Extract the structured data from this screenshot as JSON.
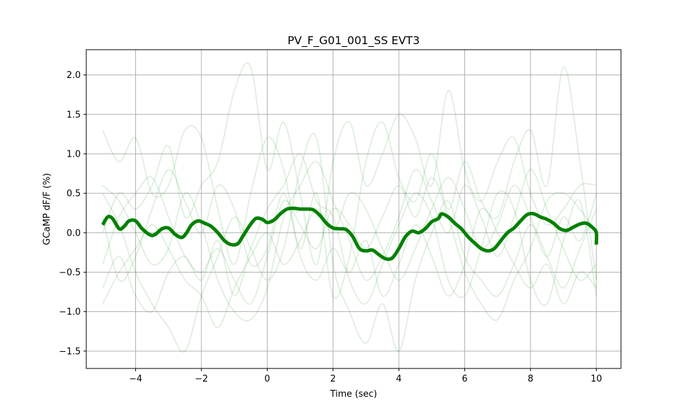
{
  "chart_data": {
    "type": "line",
    "title": "PV_F_G01_001_SS EVT3",
    "xlabel": "Time (sec)",
    "ylabel": "GCaMP dF/F (%)",
    "xlim": [
      -5.5,
      10.75
    ],
    "ylim": [
      -1.72,
      2.32
    ],
    "xticks": [
      -4,
      -2,
      0,
      2,
      4,
      6,
      8,
      10
    ],
    "xtick_labels": [
      "−4",
      "−2",
      "0",
      "2",
      "4",
      "6",
      "8",
      "10"
    ],
    "yticks": [
      -1.5,
      -1.0,
      -0.5,
      0.0,
      0.5,
      1.0,
      1.5,
      2.0
    ],
    "ytick_labels": [
      "−1.5",
      "−1.0",
      "−0.5",
      "0.0",
      "0.5",
      "1.0",
      "1.5",
      "2.0"
    ],
    "grid": true,
    "colors": {
      "mean": "#008000",
      "trials": "#008000",
      "grid": "#b0b0b0"
    },
    "series": [
      {
        "role": "mean",
        "x": [
          -5.0,
          -4.85,
          -4.7,
          -4.5,
          -4.35,
          -4.2,
          -4.0,
          -3.8,
          -3.55,
          -3.4,
          -3.2,
          -3.0,
          -2.8,
          -2.6,
          -2.45,
          -2.3,
          -2.1,
          -1.9,
          -1.7,
          -1.5,
          -1.3,
          -1.1,
          -0.9,
          -0.75,
          -0.55,
          -0.35,
          -0.15,
          0.0,
          0.2,
          0.4,
          0.6,
          0.8,
          1.0,
          1.2,
          1.4,
          1.6,
          1.8,
          2.0,
          2.2,
          2.4,
          2.6,
          2.8,
          3.0,
          3.2,
          3.4,
          3.6,
          3.8,
          4.0,
          4.2,
          4.4,
          4.6,
          4.8,
          5.0,
          5.2,
          5.3,
          5.5,
          5.7,
          5.9,
          6.1,
          6.3,
          6.5,
          6.7,
          6.9,
          7.1,
          7.3,
          7.5,
          7.7,
          7.9,
          8.1,
          8.3,
          8.5,
          8.7,
          8.9,
          9.1,
          9.3,
          9.5,
          9.7,
          9.9,
          10.0,
          10.0
        ],
        "values": [
          0.1,
          0.2,
          0.18,
          0.05,
          0.08,
          0.15,
          0.15,
          0.05,
          -0.03,
          -0.02,
          0.05,
          0.06,
          -0.02,
          -0.06,
          0.0,
          0.1,
          0.15,
          0.12,
          0.08,
          0.0,
          -0.1,
          -0.15,
          -0.14,
          -0.05,
          0.08,
          0.18,
          0.17,
          0.13,
          0.16,
          0.24,
          0.3,
          0.31,
          0.3,
          0.3,
          0.29,
          0.22,
          0.12,
          0.06,
          0.05,
          0.04,
          -0.05,
          -0.2,
          -0.23,
          -0.22,
          -0.28,
          -0.33,
          -0.32,
          -0.2,
          -0.05,
          0.02,
          0.0,
          0.05,
          0.14,
          0.18,
          0.24,
          0.2,
          0.12,
          0.05,
          -0.05,
          -0.13,
          -0.2,
          -0.23,
          -0.2,
          -0.1,
          0.0,
          0.06,
          0.15,
          0.23,
          0.24,
          0.2,
          0.17,
          0.12,
          0.05,
          0.03,
          0.07,
          0.11,
          0.12,
          0.06,
          0.0,
          -0.15
        ]
      },
      {
        "role": "trial",
        "x": [
          -5,
          -4.5,
          -4,
          -3.5,
          -3,
          -2.5,
          -2,
          -1.5,
          -1,
          -0.5,
          0,
          0.5,
          1,
          1.5,
          2,
          2.5,
          3,
          3.5,
          4,
          4.5,
          5,
          5.5,
          6,
          6.5,
          7,
          7.5,
          8,
          8.5,
          9,
          9.5,
          10
        ],
        "values": [
          1.3,
          0.9,
          1.2,
          0.5,
          0.6,
          1.3,
          1.2,
          0.3,
          -0.4,
          0.5,
          1.2,
          0.8,
          -0.2,
          0.5,
          -0.8,
          -0.3,
          0.9,
          1.4,
          0.7,
          0.4,
          1.0,
          0.3,
          0.9,
          0.4,
          0.2,
          0.9,
          1.3,
          0.6,
          2.1,
          0.9,
          -0.6
        ]
      },
      {
        "role": "trial",
        "x": [
          -5,
          -4.5,
          -4,
          -3.5,
          -3,
          -2.5,
          -2,
          -1.5,
          -1,
          -0.5,
          0,
          0.5,
          1,
          1.5,
          2,
          2.5,
          3,
          3.5,
          4,
          4.5,
          5,
          5.5,
          6,
          6.5,
          7,
          7.5,
          8,
          8.5,
          9,
          9.5,
          10
        ],
        "values": [
          -0.7,
          -0.3,
          -0.8,
          -1.0,
          -0.5,
          -0.3,
          -0.6,
          -0.1,
          -0.8,
          -0.2,
          0.3,
          0.6,
          1.0,
          0.4,
          0.2,
          -0.6,
          -0.9,
          -0.4,
          0.1,
          0.5,
          0.2,
          -0.6,
          -0.8,
          -0.2,
          0.5,
          0.3,
          -0.6,
          -0.9,
          -0.1,
          0.4,
          -0.8
        ]
      },
      {
        "role": "trial",
        "x": [
          -5,
          -4.5,
          -4,
          -3.5,
          -3,
          -2.5,
          -2,
          -1.5,
          -1,
          -0.5,
          0,
          0.5,
          1,
          1.5,
          2,
          2.5,
          3,
          3.5,
          4,
          4.5,
          5,
          5.5,
          6,
          6.5,
          7,
          7.5,
          8,
          8.5,
          9,
          9.5,
          10
        ],
        "values": [
          0.5,
          0.1,
          -0.5,
          -0.9,
          -1.2,
          -1.5,
          -0.8,
          -0.3,
          0.2,
          -0.2,
          -0.6,
          -0.2,
          0.8,
          1.2,
          -0.4,
          -1.0,
          -1.4,
          -0.9,
          -1.5,
          -0.6,
          0.0,
          0.4,
          -0.3,
          -0.6,
          -0.8,
          -0.4,
          0.1,
          -0.3,
          -0.7,
          -0.2,
          0.3
        ]
      },
      {
        "role": "trial",
        "x": [
          -5,
          -4.5,
          -4,
          -3.5,
          -3,
          -2.5,
          -2,
          -1.5,
          -1,
          -0.5,
          0,
          0.5,
          1,
          1.5,
          2,
          2.5,
          3,
          3.5,
          4,
          4.5,
          5,
          5.5,
          6,
          6.5,
          7,
          7.5,
          8,
          8.5,
          9,
          9.5,
          10
        ],
        "values": [
          0.0,
          0.5,
          0.3,
          0.6,
          1.1,
          0.2,
          0.6,
          0.9,
          1.8,
          2.1,
          0.8,
          1.4,
          0.5,
          -0.4,
          0.9,
          1.4,
          0.6,
          1.0,
          1.5,
          1.2,
          0.6,
          1.8,
          0.8,
          0.4,
          0.9,
          1.2,
          0.5,
          0.1,
          0.3,
          0.6,
          0.6
        ]
      },
      {
        "role": "trial",
        "x": [
          -5,
          -4.5,
          -4,
          -3.5,
          -3,
          -2.5,
          -2,
          -1.5,
          -1,
          -0.5,
          0,
          0.5,
          1,
          1.5,
          2,
          2.5,
          3,
          3.5,
          4,
          4.5,
          5,
          5.5,
          6,
          6.5,
          7,
          7.5,
          8,
          8.5,
          9,
          9.5,
          10
        ],
        "values": [
          -0.4,
          0.2,
          0.5,
          0.7,
          0.2,
          -0.3,
          -0.5,
          -0.2,
          -0.6,
          -0.9,
          -0.3,
          0.4,
          0.1,
          -0.2,
          0.3,
          0.1,
          -0.2,
          0.2,
          0.6,
          0.2,
          0.7,
          0.2,
          -0.5,
          -0.9,
          -1.1,
          -0.6,
          -0.2,
          0.4,
          0.5,
          0.3,
          0.0
        ]
      },
      {
        "role": "trial",
        "x": [
          -5,
          -4.5,
          -4,
          -3.5,
          -3,
          -2.5,
          -2,
          -1.5,
          -1,
          -0.5,
          0,
          0.5,
          1,
          1.5,
          2,
          2.5,
          3,
          3.5,
          4,
          4.5,
          5,
          5.5,
          6,
          6.5,
          7,
          7.5,
          8,
          8.5,
          9,
          9.5,
          10
        ],
        "values": [
          0.2,
          -0.6,
          -0.3,
          0.3,
          0.8,
          0.4,
          0.0,
          0.6,
          0.3,
          -0.4,
          -0.2,
          0.5,
          -0.3,
          -0.6,
          -0.2,
          -0.5,
          -0.1,
          -0.8,
          -0.4,
          0.1,
          -0.3,
          -0.8,
          -0.4,
          0.3,
          0.0,
          -0.4,
          -0.7,
          -0.4,
          -0.9,
          -0.5,
          -0.7
        ]
      },
      {
        "role": "trial",
        "x": [
          -5,
          -4.5,
          -4,
          -3.5,
          -3,
          -2.5,
          -2,
          -1.5,
          -1,
          -0.5,
          0,
          0.5,
          1,
          1.5,
          2,
          2.5,
          3,
          3.5,
          4,
          4.5,
          5,
          5.5,
          6,
          6.5,
          7,
          7.5,
          8,
          8.5,
          9,
          9.5,
          10
        ],
        "values": [
          0.6,
          0.4,
          0.0,
          -0.4,
          -0.2,
          0.5,
          0.1,
          -0.6,
          -1.0,
          -1.1,
          -0.7,
          0.2,
          0.6,
          0.9,
          0.4,
          -0.1,
          -0.6,
          -0.3,
          0.2,
          0.8,
          0.4,
          0.0,
          0.6,
          0.2,
          -0.3,
          0.2,
          0.8,
          0.3,
          -0.2,
          -0.6,
          -0.4
        ]
      },
      {
        "role": "trial",
        "x": [
          -5,
          -4.5,
          -4,
          -3.5,
          -3,
          -2.5,
          -2,
          -1.5,
          -1,
          -0.5,
          0,
          0.5,
          1,
          1.5,
          2,
          2.5,
          3,
          3.5,
          4,
          4.5,
          5,
          5.5,
          6,
          6.5,
          7,
          7.5,
          8,
          8.5,
          9,
          9.5,
          10
        ],
        "values": [
          -0.9,
          -0.5,
          -0.2,
          0.1,
          -0.2,
          -0.6,
          -0.8,
          -1.2,
          -0.7,
          -0.3,
          0.0,
          -0.4,
          -0.1,
          0.3,
          0.0,
          0.5,
          0.3,
          -0.2,
          -0.6,
          -0.2,
          0.3,
          0.7,
          0.3,
          -0.2,
          0.1,
          0.6,
          0.2,
          -0.3,
          0.2,
          -0.1,
          0.5
        ]
      }
    ]
  }
}
